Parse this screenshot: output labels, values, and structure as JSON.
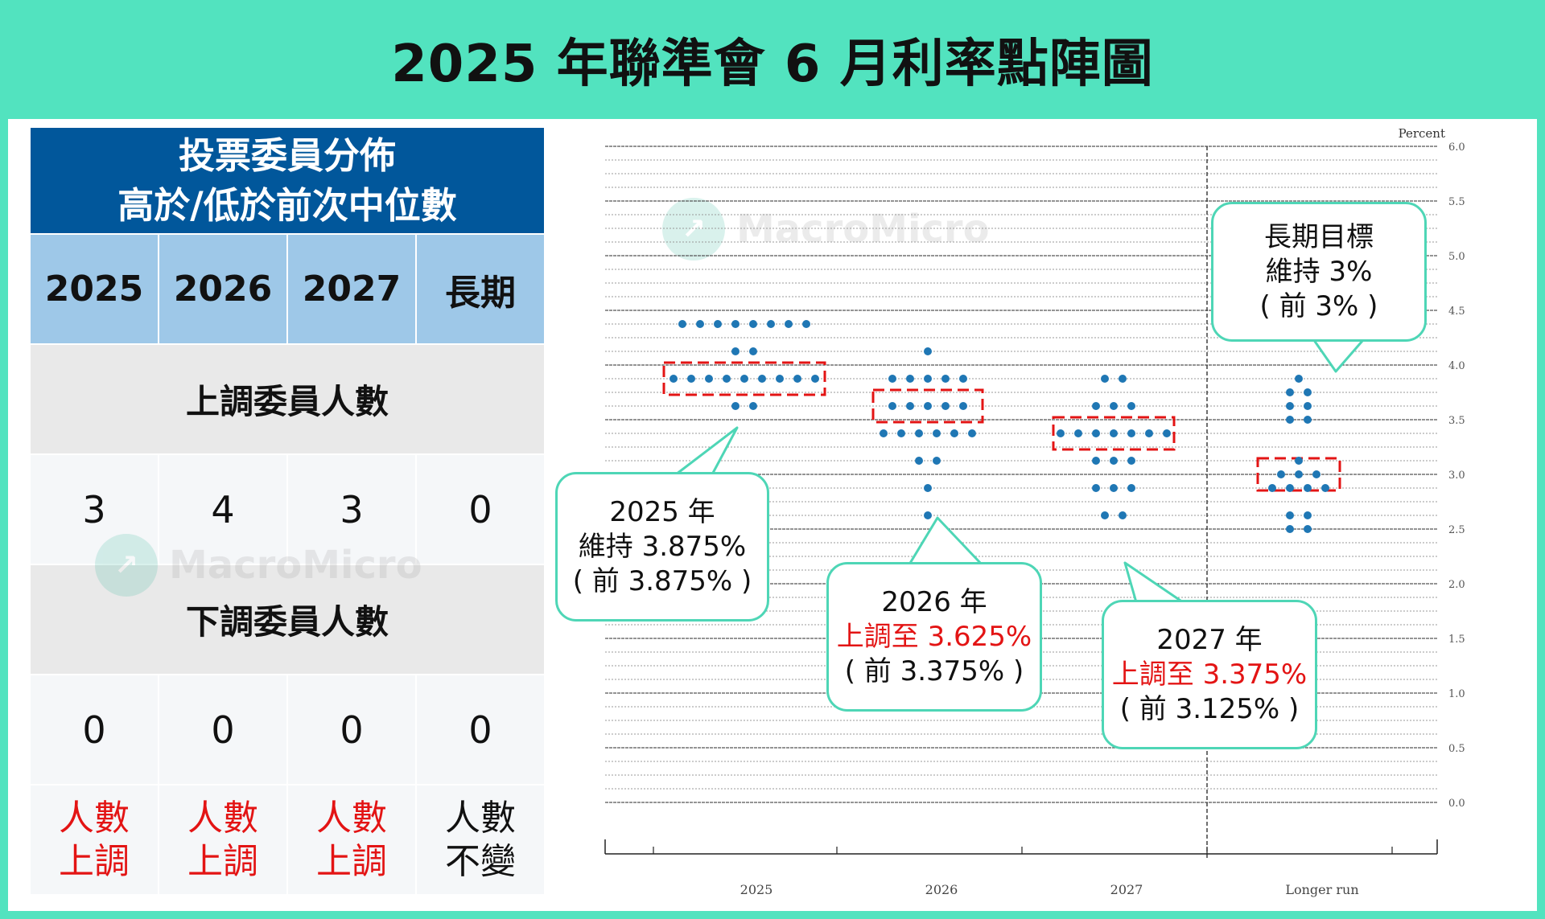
{
  "title": "2025 年聯準會 6 月利率點陣圖",
  "watermark": "MacroMicro",
  "table": {
    "header_line1": "投票委員分佈",
    "header_line2": "高於/低於前次中位數",
    "columns": [
      "2025",
      "2026",
      "2027",
      "長期"
    ],
    "up_label": "上調委員人數",
    "up_counts": [
      "3",
      "4",
      "3",
      "0"
    ],
    "down_label": "下調委員人數",
    "down_counts": [
      "0",
      "0",
      "0",
      "0"
    ],
    "summary": [
      {
        "line1": "人數",
        "line2": "上調",
        "color": "#E31414"
      },
      {
        "line1": "人數",
        "line2": "上調",
        "color": "#E31414"
      },
      {
        "line1": "人數",
        "line2": "上調",
        "color": "#E31414"
      },
      {
        "line1": "人數",
        "line2": "不變",
        "color": "#111111"
      }
    ]
  },
  "callouts": [
    {
      "line1": "2025 年",
      "line2": "維持 3.875%",
      "line3": "( 前 3.875% )",
      "highlight": false
    },
    {
      "line1": "2026 年",
      "line2": "上調至 3.625%",
      "line3": "( 前 3.375% )",
      "highlight": true
    },
    {
      "line1": "2027 年",
      "line2": "上調至 3.375%",
      "line3": "( 前 3.125% )",
      "highlight": true
    },
    {
      "line1": "長期目標",
      "line2": "維持 3%",
      "line3": "( 前 3% )",
      "highlight": false
    }
  ],
  "chart_data": {
    "type": "scatter",
    "title": "",
    "ylabel": "Percent",
    "ylim": [
      0,
      6
    ],
    "yticks": [
      "0.0",
      "0.5",
      "1.0",
      "1.5",
      "2.0",
      "2.5",
      "3.0",
      "3.5",
      "4.0",
      "4.5",
      "5.0",
      "5.5",
      "6.0"
    ],
    "categories": [
      "2025",
      "2026",
      "2027",
      "Longer run"
    ],
    "dot_color": "#1F77B4",
    "dots": [
      {
        "category": "2025",
        "rows": [
          {
            "y": 4.375,
            "count": 8
          },
          {
            "y": 4.125,
            "count": 2
          },
          {
            "y": 3.875,
            "count": 9
          },
          {
            "y": 3.625,
            "count": 2
          }
        ]
      },
      {
        "category": "2026",
        "rows": [
          {
            "y": 4.125,
            "count": 1
          },
          {
            "y": 3.875,
            "count": 5
          },
          {
            "y": 3.625,
            "count": 5
          },
          {
            "y": 3.375,
            "count": 6
          },
          {
            "y": 3.125,
            "count": 2
          },
          {
            "y": 2.875,
            "count": 1
          },
          {
            "y": 2.625,
            "count": 1
          }
        ]
      },
      {
        "category": "2027",
        "rows": [
          {
            "y": 3.875,
            "count": 2
          },
          {
            "y": 3.625,
            "count": 3
          },
          {
            "y": 3.375,
            "count": 7
          },
          {
            "y": 3.125,
            "count": 3
          },
          {
            "y": 2.875,
            "count": 3
          },
          {
            "y": 2.625,
            "count": 2
          }
        ]
      },
      {
        "category": "Longer run",
        "rows": [
          {
            "y": 3.875,
            "count": 1
          },
          {
            "y": 3.75,
            "count": 2
          },
          {
            "y": 3.625,
            "count": 2
          },
          {
            "y": 3.5,
            "count": 2
          },
          {
            "y": 3.125,
            "count": 1
          },
          {
            "y": 3.0,
            "count": 3
          },
          {
            "y": 2.875,
            "count": 4
          },
          {
            "y": 2.625,
            "count": 2
          },
          {
            "y": 2.5,
            "count": 2
          }
        ]
      }
    ],
    "medians": [
      {
        "category": "2025",
        "y": 3.875
      },
      {
        "category": "2026",
        "y": 3.625
      },
      {
        "category": "2027",
        "y": 3.375
      },
      {
        "category": "Longer run",
        "y": 3.0
      }
    ]
  }
}
